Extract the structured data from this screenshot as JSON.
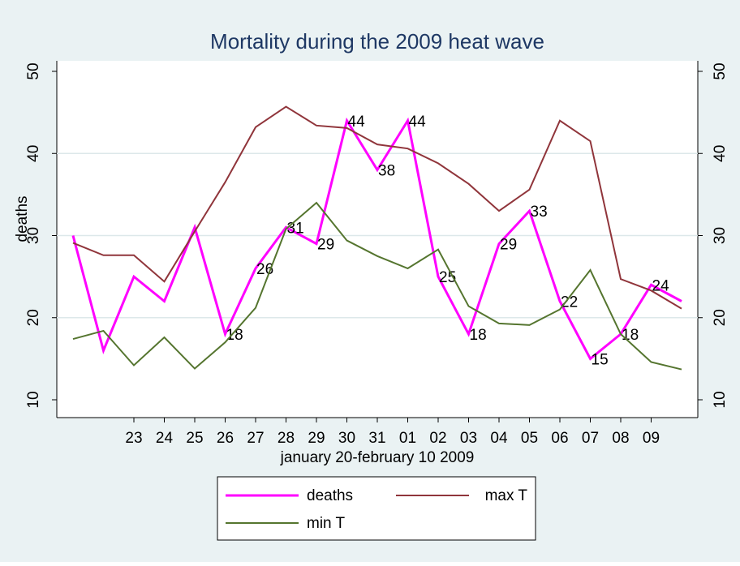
{
  "chart_data": {
    "type": "line",
    "title": "Mortality during the 2009 heat wave",
    "x_label": "january 20-february 10 2009",
    "y_label": "deaths",
    "categories": [
      null,
      null,
      "23",
      "24",
      "25",
      "26",
      "27",
      "28",
      "29",
      "30",
      "31",
      "01",
      "02",
      "03",
      "04",
      "05",
      "06",
      "07",
      "08",
      "09",
      null
    ],
    "series": [
      {
        "name": "deaths",
        "color": "#ff00ff",
        "values": [
          30,
          16,
          25,
          22,
          31,
          18,
          26,
          31,
          29,
          44,
          38,
          44,
          25,
          18,
          29,
          33,
          22,
          15,
          18,
          24,
          22
        ],
        "value_labels": [
          null,
          null,
          null,
          null,
          null,
          "18",
          "26",
          "31",
          "29",
          "44",
          "38",
          "44",
          "25",
          "18",
          "29",
          "33",
          "22",
          "15",
          "18",
          "24",
          null
        ]
      },
      {
        "name": "max T",
        "color": "#90353b",
        "axis": "y2",
        "values": [
          29.1,
          27.6,
          27.6,
          24.4,
          30.5,
          36.5,
          43.2,
          45.7,
          43.4,
          43.1,
          41.1,
          40.6,
          38.8,
          36.3,
          33.0,
          35.6,
          44.0,
          41.5,
          24.7,
          23.3,
          21.1
        ]
      },
      {
        "name": "min T",
        "color": "#55752f",
        "axis": "y2",
        "values": [
          17.4,
          18.4,
          14.2,
          17.6,
          13.8,
          17.0,
          21.2,
          30.8,
          34.0,
          29.4,
          27.5,
          26.0,
          28.3,
          21.4,
          19.3,
          19.1,
          21.0,
          25.8,
          18.0,
          14.6,
          13.7
        ]
      }
    ],
    "ylim": [
      10,
      50
    ],
    "yticks": [
      10,
      20,
      30,
      40,
      50
    ],
    "y2lim": [
      10,
      50
    ],
    "y2ticks": [
      10,
      20,
      30,
      40,
      50
    ],
    "grid": true,
    "legend": "bottom"
  }
}
